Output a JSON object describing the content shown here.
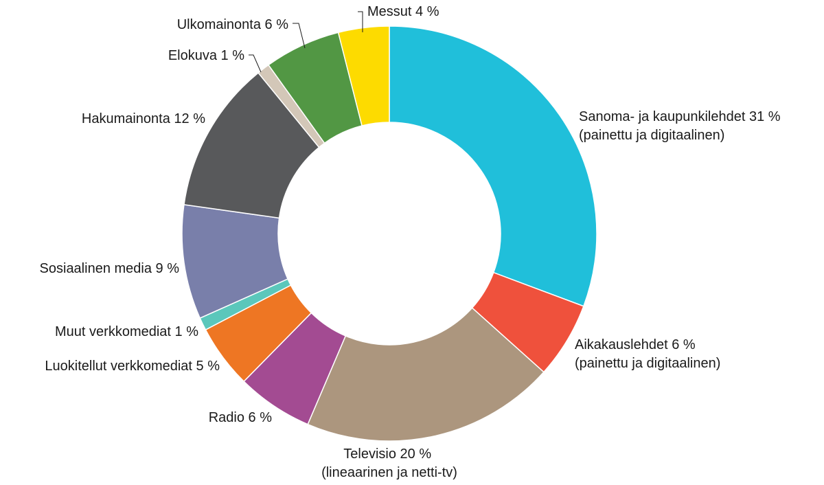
{
  "chart_data": {
    "type": "pie",
    "style": "donut",
    "slices": [
      {
        "name": "Sanoma- ja kaupunkilehdet",
        "value": 31,
        "label": [
          "Sanoma- ja kaupunkilehdet 31 %",
          "(painettu ja digitaalinen)"
        ],
        "color": "#20BFDA"
      },
      {
        "name": "Aikakauslehdet",
        "value": 6,
        "label": [
          "Aikakauslehdet 6 %",
          "(painettu ja digitaalinen)"
        ],
        "color": "#EF513C"
      },
      {
        "name": "Televisio",
        "value": 20,
        "label": [
          "Televisio 20 %",
          "(lineaarinen ja netti-tv)"
        ],
        "color": "#AC967E"
      },
      {
        "name": "Radio",
        "value": 6,
        "label": [
          "Radio 6 %"
        ],
        "color": "#A34B92"
      },
      {
        "name": "Luokitellut verkkomediat",
        "value": 5,
        "label": [
          "Luokitellut verkkomediat 5 %"
        ],
        "color": "#EE7623"
      },
      {
        "name": "Muut verkkomediat",
        "value": 1,
        "label": [
          "Muut verkkomediat 1 %"
        ],
        "color": "#5BC7BB"
      },
      {
        "name": "Sosiaalinen media",
        "value": 9,
        "label": [
          "Sosiaalinen media 9 %"
        ],
        "color": "#797FAA"
      },
      {
        "name": "Hakumainonta",
        "value": 12,
        "label": [
          "Hakumainonta 12 %"
        ],
        "color": "#58595B"
      },
      {
        "name": "Elokuva",
        "value": 1,
        "label": [
          "Elokuva 1 %"
        ],
        "color": "#D3C7B8"
      },
      {
        "name": "Ulkomainonta",
        "value": 6,
        "label": [
          "Ulkomainonta 6 %"
        ],
        "color": "#529744"
      },
      {
        "name": "Messut",
        "value": 4,
        "label": [
          "Messut 4 %"
        ],
        "color": "#FDDB00"
      }
    ]
  }
}
